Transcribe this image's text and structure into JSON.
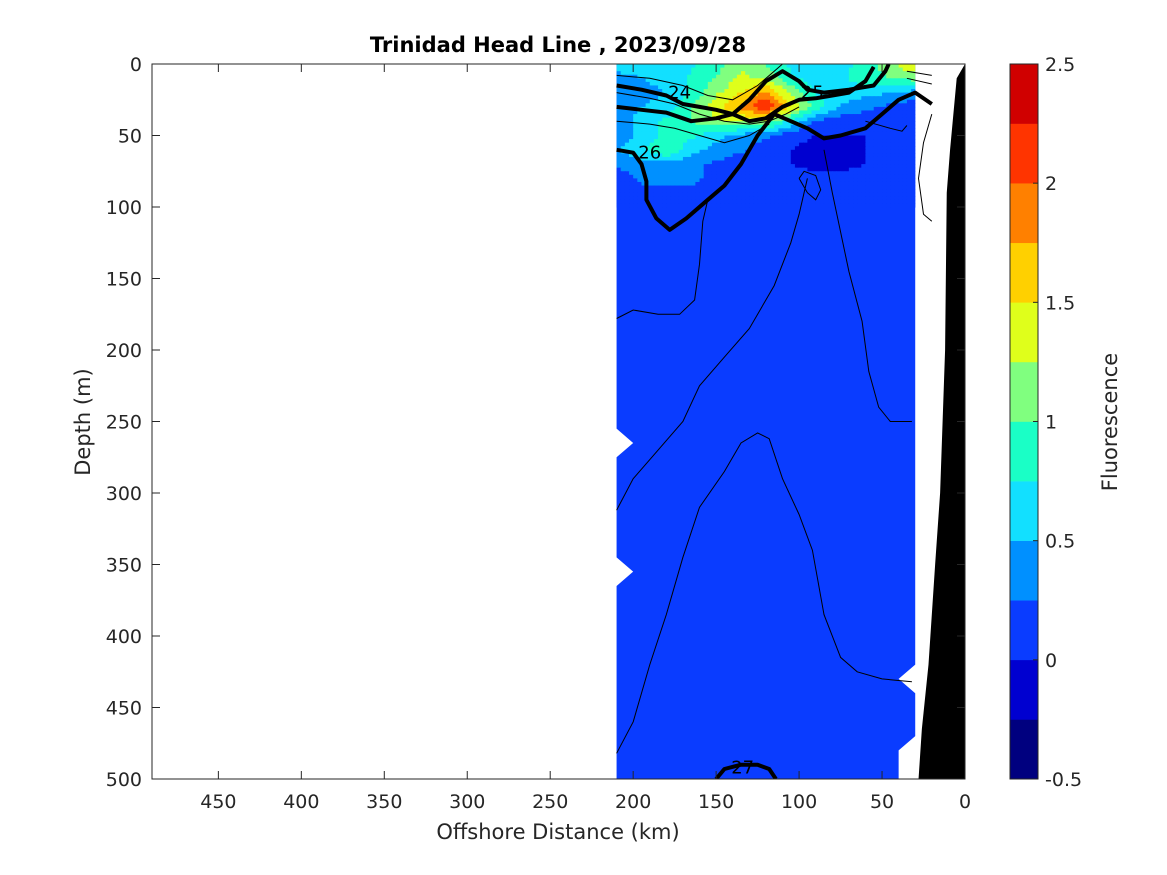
{
  "chart_data": {
    "type": "heatmap",
    "title": "Trinidad Head Line , 2023/09/28",
    "xlabel": "Offshore Distance (km)",
    "ylabel": "Depth (m)",
    "xlim": [
      490,
      0
    ],
    "ylim": [
      500,
      0
    ],
    "x_reversed": true,
    "y_reversed": true,
    "x_ticks": [
      "450",
      "400",
      "350",
      "300",
      "250",
      "200",
      "150",
      "100",
      "50",
      "0"
    ],
    "x_tick_values": [
      450,
      400,
      350,
      300,
      250,
      200,
      150,
      100,
      50,
      0
    ],
    "y_ticks": [
      "0",
      "50",
      "100",
      "150",
      "200",
      "250",
      "300",
      "350",
      "400",
      "450",
      "500"
    ],
    "y_tick_values": [
      0,
      50,
      100,
      150,
      200,
      250,
      300,
      350,
      400,
      450,
      500
    ],
    "colorbar": {
      "label": "Fluorescence",
      "range": [
        -0.5,
        2.5
      ],
      "tick_labels": [
        "2.5",
        "2",
        "1.5",
        "1",
        "0.5",
        "0",
        "-0.5"
      ],
      "tick_values": [
        2.5,
        2,
        1.5,
        1,
        0.5,
        0,
        -0.5
      ],
      "levels": [
        -0.5,
        -0.25,
        0,
        0.25,
        0.5,
        0.75,
        1,
        1.25,
        1.5,
        1.75,
        2,
        2.25,
        2.5
      ],
      "colors": [
        "#00007f",
        "#0000d0",
        "#0a3cff",
        "#0090ff",
        "#12e0ff",
        "#1affc6",
        "#80ff7f",
        "#dfff1b",
        "#ffd000",
        "#ff8000",
        "#ff3400",
        "#d00000"
      ]
    },
    "field": {
      "x_km": [
        210,
        195,
        180,
        165,
        150,
        135,
        120,
        105,
        90,
        75,
        60,
        45,
        30
      ],
      "depth_m": [
        0,
        10,
        20,
        30,
        40,
        50,
        60,
        70,
        80,
        100
      ],
      "fluorescence": [
        [
          0.6,
          0.7,
          0.6,
          0.7,
          0.9,
          1.2,
          1.0,
          0.7,
          0.6,
          0.7,
          0.8,
          1.2,
          1.5
        ],
        [
          0.4,
          0.5,
          0.6,
          0.8,
          1.0,
          1.3,
          1.2,
          0.8,
          0.6,
          0.7,
          0.9,
          1.0,
          1.1
        ],
        [
          0.4,
          0.4,
          0.5,
          0.8,
          1.2,
          1.5,
          1.8,
          1.2,
          0.7,
          0.6,
          0.6,
          0.5,
          0.4
        ],
        [
          0.4,
          0.5,
          0.6,
          1.0,
          1.4,
          1.8,
          2.3,
          1.5,
          0.9,
          0.5,
          0.3,
          0.2,
          0.1
        ],
        [
          0.3,
          0.6,
          0.8,
          1.0,
          1.2,
          1.3,
          1.2,
          0.7,
          0.2,
          0.1,
          0.1,
          0.1,
          0.1
        ],
        [
          0.3,
          0.6,
          0.8,
          0.8,
          0.6,
          0.4,
          0.3,
          0.1,
          0.0,
          0.0,
          0.0,
          0.0,
          0.1
        ],
        [
          0.5,
          0.7,
          1.0,
          0.6,
          0.4,
          0.3,
          0.1,
          0.0,
          -0.1,
          -0.1,
          0.0,
          0.1,
          0.1
        ],
        [
          0.3,
          0.4,
          0.4,
          0.3,
          0.2,
          0.1,
          0.1,
          0.0,
          -0.1,
          -0.1,
          0.0,
          0.1,
          0.1
        ],
        [
          0.1,
          0.3,
          0.3,
          0.3,
          0.2,
          0.1,
          0.1,
          0.1,
          0.1,
          0.1,
          0.1,
          0.1,
          0.1
        ],
        [
          0.1,
          0.1,
          0.1,
          0.1,
          0.1,
          0.1,
          0.1,
          0.1,
          0.1,
          0.1,
          0.1,
          0.1,
          0.1
        ]
      ],
      "deep_value": 0.1,
      "coverage": [
        {
          "depth": 0,
          "x_min": 30,
          "x_max": 210
        },
        {
          "depth": 255,
          "x_min": 30,
          "x_max": 210
        },
        {
          "depth": 265,
          "x_min": 30,
          "x_max": 200
        },
        {
          "depth": 275,
          "x_min": 30,
          "x_max": 210
        },
        {
          "depth": 345,
          "x_min": 30,
          "x_max": 210
        },
        {
          "depth": 355,
          "x_min": 30,
          "x_max": 200
        },
        {
          "depth": 365,
          "x_min": 30,
          "x_max": 210
        },
        {
          "depth": 420,
          "x_min": 30,
          "x_max": 210
        },
        {
          "depth": 430,
          "x_min": 40,
          "x_max": 210
        },
        {
          "depth": 440,
          "x_min": 30,
          "x_max": 210
        },
        {
          "depth": 470,
          "x_min": 30,
          "x_max": 210
        },
        {
          "depth": 480,
          "x_min": 40,
          "x_max": 210
        },
        {
          "depth": 500,
          "x_min": 40,
          "x_max": 210
        }
      ]
    },
    "density_contours": {
      "labeled": [
        {
          "label": "24",
          "bold": true,
          "points": [
            [
              210,
              15
            ],
            [
              195,
              18
            ],
            [
              180,
              22
            ],
            [
              170,
              28
            ],
            [
              160,
              30
            ],
            [
              150,
              32
            ],
            [
              140,
              35
            ],
            [
              130,
              40
            ],
            [
              120,
              38
            ],
            [
              110,
              30
            ],
            [
              100,
              25
            ],
            [
              90,
              24
            ],
            [
              80,
              22
            ],
            [
              70,
              20
            ],
            [
              60,
              12
            ],
            [
              55,
              2
            ]
          ]
        },
        {
          "label": "25",
          "bold": true,
          "points": [
            [
              210,
              30
            ],
            [
              195,
              32
            ],
            [
              180,
              34
            ],
            [
              170,
              38
            ],
            [
              165,
              40
            ],
            [
              150,
              38
            ],
            [
              140,
              35
            ],
            [
              130,
              25
            ],
            [
              120,
              12
            ],
            [
              110,
              5
            ],
            [
              100,
              12
            ],
            [
              95,
              18
            ],
            [
              85,
              20
            ],
            [
              70,
              18
            ],
            [
              55,
              15
            ],
            [
              48,
              5
            ],
            [
              46,
              0
            ]
          ]
        },
        {
          "label": "26",
          "bold": true,
          "points": [
            [
              210,
              60
            ],
            [
              200,
              62
            ],
            [
              195,
              70
            ],
            [
              192,
              82
            ],
            [
              192,
              95
            ],
            [
              186,
              108
            ],
            [
              178,
              116
            ],
            [
              168,
              108
            ],
            [
              155,
              95
            ],
            [
              145,
              85
            ],
            [
              135,
              70
            ],
            [
              125,
              50
            ],
            [
              115,
              35
            ],
            [
              105,
              40
            ],
            [
              95,
              45
            ],
            [
              85,
              52
            ],
            [
              75,
              50
            ],
            [
              60,
              45
            ],
            [
              50,
              35
            ],
            [
              40,
              25
            ],
            [
              30,
              20
            ],
            [
              20,
              28
            ]
          ]
        },
        {
          "label": "27",
          "bold": true,
          "points": [
            [
              150,
              500
            ],
            [
              145,
              493
            ],
            [
              135,
              490
            ],
            [
              125,
              490
            ],
            [
              118,
              493
            ],
            [
              114,
              500
            ]
          ]
        }
      ],
      "thin": [
        [
          [
            210,
            8
          ],
          [
            190,
            10
          ],
          [
            170,
            15
          ],
          [
            155,
            22
          ],
          [
            140,
            25
          ],
          [
            125,
            15
          ],
          [
            115,
            5
          ],
          [
            110,
            0
          ]
        ],
        [
          [
            210,
            20
          ],
          [
            190,
            24
          ],
          [
            175,
            28
          ],
          [
            160,
            35
          ],
          [
            145,
            40
          ],
          [
            130,
            42
          ],
          [
            118,
            40
          ],
          [
            108,
            35
          ],
          [
            100,
            30
          ]
        ],
        [
          [
            210,
            40
          ],
          [
            190,
            42
          ],
          [
            175,
            45
          ],
          [
            160,
            50
          ],
          [
            145,
            55
          ],
          [
            130,
            50
          ],
          [
            118,
            42
          ]
        ],
        [
          [
            210,
            178
          ],
          [
            200,
            172
          ],
          [
            185,
            175
          ],
          [
            172,
            175
          ],
          [
            163,
            165
          ],
          [
            160,
            140
          ],
          [
            158,
            110
          ],
          [
            155,
            95
          ]
        ],
        [
          [
            210,
            312
          ],
          [
            200,
            290
          ],
          [
            185,
            270
          ],
          [
            170,
            250
          ],
          [
            160,
            225
          ],
          [
            145,
            205
          ],
          [
            130,
            185
          ],
          [
            115,
            155
          ],
          [
            105,
            125
          ],
          [
            100,
            105
          ],
          [
            95,
            80
          ]
        ],
        [
          [
            210,
            482
          ],
          [
            200,
            460
          ],
          [
            190,
            420
          ],
          [
            180,
            385
          ],
          [
            170,
            345
          ],
          [
            160,
            310
          ],
          [
            145,
            285
          ],
          [
            135,
            265
          ],
          [
            125,
            258
          ],
          [
            118,
            262
          ],
          [
            110,
            290
          ],
          [
            100,
            315
          ],
          [
            92,
            340
          ],
          [
            85,
            385
          ],
          [
            75,
            415
          ],
          [
            65,
            425
          ],
          [
            50,
            430
          ],
          [
            32,
            432
          ]
        ],
        [
          [
            100,
            80
          ],
          [
            95,
            90
          ],
          [
            90,
            95
          ],
          [
            87,
            88
          ],
          [
            90,
            78
          ],
          [
            97,
            75
          ],
          [
            100,
            80
          ]
        ],
        [
          [
            85,
            60
          ],
          [
            80,
            90
          ],
          [
            70,
            145
          ],
          [
            62,
            180
          ],
          [
            58,
            215
          ],
          [
            52,
            240
          ],
          [
            45,
            250
          ],
          [
            32,
            250
          ]
        ],
        [
          [
            60,
            40
          ],
          [
            45,
            45
          ],
          [
            38,
            47
          ],
          [
            35,
            43
          ]
        ],
        [
          [
            20,
            35
          ],
          [
            25,
            55
          ],
          [
            28,
            80
          ],
          [
            25,
            105
          ],
          [
            20,
            110
          ]
        ],
        [
          [
            35,
            5
          ],
          [
            20,
            8
          ]
        ],
        [
          [
            35,
            10
          ],
          [
            20,
            14
          ]
        ]
      ]
    },
    "bathymetry": {
      "fill_color": "#000000",
      "outline": [
        [
          0,
          0
        ],
        [
          5,
          10
        ],
        [
          9,
          60
        ],
        [
          11,
          90
        ],
        [
          12,
          200
        ],
        [
          15,
          300
        ],
        [
          18,
          350
        ],
        [
          22,
          420
        ],
        [
          26,
          465
        ],
        [
          28,
          500
        ],
        [
          0,
          500
        ]
      ]
    }
  }
}
